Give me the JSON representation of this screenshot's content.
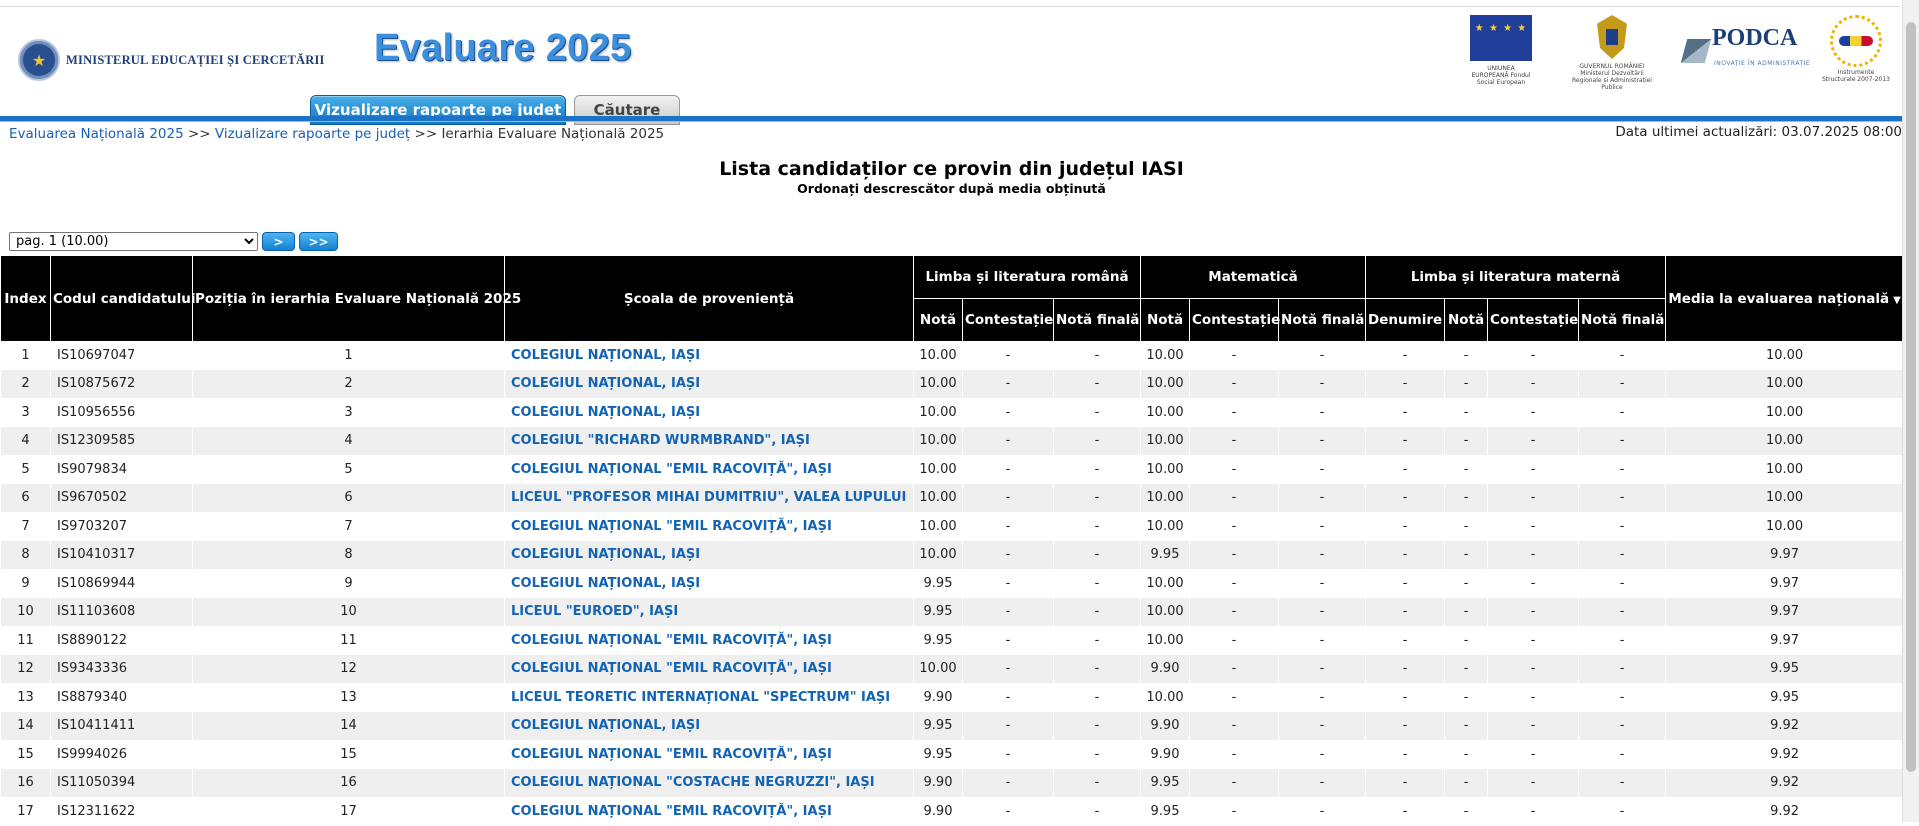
{
  "header": {
    "ministry": "MINISTERUL EDUCAȚIEI ȘI CERCETĂRII",
    "ministry_seal_glyph": "★",
    "app_title": "Evaluare 2025",
    "logo_eu_caption": "UNIUNEA EUROPEANĂ Fondul Social European",
    "logo_gov_caption": "GUVERNUL ROMÂNIEI Ministerul Dezvoltării Regionale și Administrației Publice",
    "logo_podca": "PODCA",
    "logo_podca_sub": "INOVAȚIE ÎN ADMINISTRAȚIE",
    "logo_is_caption": "Instrumente Structurale 2007-2013"
  },
  "tabs": {
    "active": "Vizualizare rapoarte pe județ",
    "search": "Căutare"
  },
  "breadcrumb": {
    "item1": "Evaluarea Națională 2025",
    "item2": "Vizualizare rapoarte pe județ",
    "current": "Ierarhia Evaluare Națională 2025",
    "sep": ">>"
  },
  "updated": "Data ultimei actualizări: 03.07.2025 08:00",
  "list": {
    "title": "Lista candidaților ce provin din județul IASI",
    "subtitle": "Ordonați descrescător după media obținută"
  },
  "pager": {
    "selected": "pag. 1 (10.00)",
    "next": ">",
    "last": ">>"
  },
  "table": {
    "headers": {
      "index": "Index",
      "code": "Codul candidatului",
      "position": "Poziția în ierarhia Evaluare Națională 2025",
      "school": "Școala de proveniență",
      "romana": "Limba și literatura română",
      "mate": "Matematică",
      "materna": "Limba și literatura maternă",
      "media": "Media la evaluarea națională",
      "sort_icon": "▼",
      "nota": "Notă",
      "contestatie": "Contestație",
      "nota_finala": "Notă finală",
      "denumire": "Denumire"
    },
    "rows": [
      {
        "index": "1",
        "code": "IS10697047",
        "pos": "1",
        "school": "COLEGIUL NAȚIONAL, IAȘI",
        "ro": "10.00",
        "ro_c": "-",
        "ro_f": "-",
        "ma": "10.00",
        "ma_c": "-",
        "ma_f": "-",
        "lm_d": "-",
        "lm_n": "-",
        "lm_c": "-",
        "lm_f": "-",
        "media": "10.00"
      },
      {
        "index": "2",
        "code": "IS10875672",
        "pos": "2",
        "school": "COLEGIUL NAȚIONAL, IAȘI",
        "ro": "10.00",
        "ro_c": "-",
        "ro_f": "-",
        "ma": "10.00",
        "ma_c": "-",
        "ma_f": "-",
        "lm_d": "-",
        "lm_n": "-",
        "lm_c": "-",
        "lm_f": "-",
        "media": "10.00"
      },
      {
        "index": "3",
        "code": "IS10956556",
        "pos": "3",
        "school": "COLEGIUL NAȚIONAL, IAȘI",
        "ro": "10.00",
        "ro_c": "-",
        "ro_f": "-",
        "ma": "10.00",
        "ma_c": "-",
        "ma_f": "-",
        "lm_d": "-",
        "lm_n": "-",
        "lm_c": "-",
        "lm_f": "-",
        "media": "10.00"
      },
      {
        "index": "4",
        "code": "IS12309585",
        "pos": "4",
        "school": "COLEGIUL \"RICHARD WURMBRAND\", IAȘI",
        "ro": "10.00",
        "ro_c": "-",
        "ro_f": "-",
        "ma": "10.00",
        "ma_c": "-",
        "ma_f": "-",
        "lm_d": "-",
        "lm_n": "-",
        "lm_c": "-",
        "lm_f": "-",
        "media": "10.00"
      },
      {
        "index": "5",
        "code": "IS9079834",
        "pos": "5",
        "school": "COLEGIUL NAȚIONAL \"EMIL RACOVIȚĂ\", IAȘI",
        "ro": "10.00",
        "ro_c": "-",
        "ro_f": "-",
        "ma": "10.00",
        "ma_c": "-",
        "ma_f": "-",
        "lm_d": "-",
        "lm_n": "-",
        "lm_c": "-",
        "lm_f": "-",
        "media": "10.00"
      },
      {
        "index": "6",
        "code": "IS9670502",
        "pos": "6",
        "school": "LICEUL \"PROFESOR MIHAI DUMITRIU\", VALEA LUPULUI",
        "ro": "10.00",
        "ro_c": "-",
        "ro_f": "-",
        "ma": "10.00",
        "ma_c": "-",
        "ma_f": "-",
        "lm_d": "-",
        "lm_n": "-",
        "lm_c": "-",
        "lm_f": "-",
        "media": "10.00"
      },
      {
        "index": "7",
        "code": "IS9703207",
        "pos": "7",
        "school": "COLEGIUL NAȚIONAL \"EMIL RACOVIȚĂ\", IAȘI",
        "ro": "10.00",
        "ro_c": "-",
        "ro_f": "-",
        "ma": "10.00",
        "ma_c": "-",
        "ma_f": "-",
        "lm_d": "-",
        "lm_n": "-",
        "lm_c": "-",
        "lm_f": "-",
        "media": "10.00"
      },
      {
        "index": "8",
        "code": "IS10410317",
        "pos": "8",
        "school": "COLEGIUL NAȚIONAL, IAȘI",
        "ro": "10.00",
        "ro_c": "-",
        "ro_f": "-",
        "ma": "9.95",
        "ma_c": "-",
        "ma_f": "-",
        "lm_d": "-",
        "lm_n": "-",
        "lm_c": "-",
        "lm_f": "-",
        "media": "9.97"
      },
      {
        "index": "9",
        "code": "IS10869944",
        "pos": "9",
        "school": "COLEGIUL NAȚIONAL, IAȘI",
        "ro": "9.95",
        "ro_c": "-",
        "ro_f": "-",
        "ma": "10.00",
        "ma_c": "-",
        "ma_f": "-",
        "lm_d": "-",
        "lm_n": "-",
        "lm_c": "-",
        "lm_f": "-",
        "media": "9.97"
      },
      {
        "index": "10",
        "code": "IS11103608",
        "pos": "10",
        "school": "LICEUL \"EUROED\", IAȘI",
        "ro": "9.95",
        "ro_c": "-",
        "ro_f": "-",
        "ma": "10.00",
        "ma_c": "-",
        "ma_f": "-",
        "lm_d": "-",
        "lm_n": "-",
        "lm_c": "-",
        "lm_f": "-",
        "media": "9.97"
      },
      {
        "index": "11",
        "code": "IS8890122",
        "pos": "11",
        "school": "COLEGIUL NAȚIONAL \"EMIL RACOVIȚĂ\", IAȘI",
        "ro": "9.95",
        "ro_c": "-",
        "ro_f": "-",
        "ma": "10.00",
        "ma_c": "-",
        "ma_f": "-",
        "lm_d": "-",
        "lm_n": "-",
        "lm_c": "-",
        "lm_f": "-",
        "media": "9.97"
      },
      {
        "index": "12",
        "code": "IS9343336",
        "pos": "12",
        "school": "COLEGIUL NAȚIONAL \"EMIL RACOVIȚĂ\", IAȘI",
        "ro": "10.00",
        "ro_c": "-",
        "ro_f": "-",
        "ma": "9.90",
        "ma_c": "-",
        "ma_f": "-",
        "lm_d": "-",
        "lm_n": "-",
        "lm_c": "-",
        "lm_f": "-",
        "media": "9.95"
      },
      {
        "index": "13",
        "code": "IS8879340",
        "pos": "13",
        "school": "LICEUL TEORETIC INTERNAȚIONAL \"SPECTRUM\" IAȘI",
        "ro": "9.90",
        "ro_c": "-",
        "ro_f": "-",
        "ma": "10.00",
        "ma_c": "-",
        "ma_f": "-",
        "lm_d": "-",
        "lm_n": "-",
        "lm_c": "-",
        "lm_f": "-",
        "media": "9.95"
      },
      {
        "index": "14",
        "code": "IS10411411",
        "pos": "14",
        "school": "COLEGIUL NAȚIONAL, IAȘI",
        "ro": "9.95",
        "ro_c": "-",
        "ro_f": "-",
        "ma": "9.90",
        "ma_c": "-",
        "ma_f": "-",
        "lm_d": "-",
        "lm_n": "-",
        "lm_c": "-",
        "lm_f": "-",
        "media": "9.92"
      },
      {
        "index": "15",
        "code": "IS9994026",
        "pos": "15",
        "school": "COLEGIUL NAȚIONAL \"EMIL RACOVIȚĂ\", IAȘI",
        "ro": "9.95",
        "ro_c": "-",
        "ro_f": "-",
        "ma": "9.90",
        "ma_c": "-",
        "ma_f": "-",
        "lm_d": "-",
        "lm_n": "-",
        "lm_c": "-",
        "lm_f": "-",
        "media": "9.92"
      },
      {
        "index": "16",
        "code": "IS11050394",
        "pos": "16",
        "school": "COLEGIUL NAȚIONAL \"COSTACHE NEGRUZZI\", IAȘI",
        "ro": "9.90",
        "ro_c": "-",
        "ro_f": "-",
        "ma": "9.95",
        "ma_c": "-",
        "ma_f": "-",
        "lm_d": "-",
        "lm_n": "-",
        "lm_c": "-",
        "lm_f": "-",
        "media": "9.92"
      },
      {
        "index": "17",
        "code": "IS12311622",
        "pos": "17",
        "school": "COLEGIUL NAȚIONAL \"EMIL RACOVIȚĂ\", IAȘI",
        "ro": "9.90",
        "ro_c": "-",
        "ro_f": "-",
        "ma": "9.95",
        "ma_c": "-",
        "ma_f": "-",
        "lm_d": "-",
        "lm_n": "-",
        "lm_c": "-",
        "lm_f": "-",
        "media": "9.92"
      }
    ]
  }
}
